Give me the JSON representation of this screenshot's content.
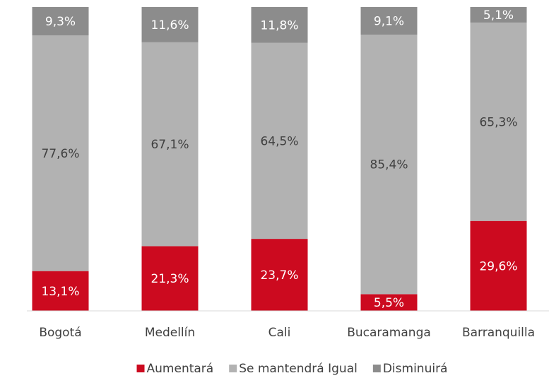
{
  "chart_data": {
    "type": "stacked_bar",
    "categories": [
      "Bogotá",
      "Medellín",
      "Cali",
      "Bucaramanga",
      "Barranquilla"
    ],
    "series": [
      {
        "name": "Aumentará",
        "color": "#cc0a1f",
        "label_color": "#ffffff",
        "values": [
          13.1,
          21.3,
          23.7,
          5.5,
          29.6
        ],
        "value_labels": [
          "13,1%",
          "21,3%",
          "23,7%",
          "5,5%",
          "29,6%"
        ]
      },
      {
        "name": "Se mantendrá Igual",
        "color": "#b2b2b2",
        "label_color": "#404040",
        "values": [
          77.6,
          67.1,
          64.5,
          85.4,
          65.3
        ],
        "value_labels": [
          "77,6%",
          "67,1%",
          "64,5%",
          "85,4%",
          "65,3%"
        ]
      },
      {
        "name": "Disminuirá",
        "color": "#8c8c8c",
        "label_color": "#ffffff",
        "values": [
          9.3,
          11.6,
          11.8,
          9.1,
          5.1
        ],
        "value_labels": [
          "9,3%",
          "11,6%",
          "11,8%",
          "9,1%",
          "5,1%"
        ]
      }
    ],
    "ylim": [
      0,
      100
    ],
    "legend": "bottom"
  }
}
